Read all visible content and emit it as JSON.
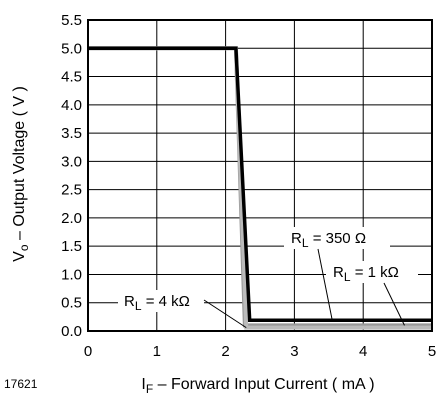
{
  "chart_data": {
    "type": "line",
    "figure_id": "17621",
    "xlabel": {
      "main": "I",
      "sub": "F",
      "rest": " – Forward Input Current ( mA )"
    },
    "ylabel": {
      "main": "V",
      "sub": "o",
      "rest": "  – Output Voltage ( V )"
    },
    "xlim": [
      0,
      5
    ],
    "ylim": [
      0,
      5.5
    ],
    "xticks": [
      "0",
      "1",
      "2",
      "3",
      "4",
      "5"
    ],
    "yticks": [
      "0.0",
      "0.5",
      "1.0",
      "1.5",
      "2.0",
      "2.5",
      "3.0",
      "3.5",
      "4.0",
      "4.5",
      "5.0",
      "5.5"
    ],
    "grid": true,
    "series": [
      {
        "name": "R_L = 1 kΩ",
        "color": "#999999",
        "x": [
          0,
          2.15,
          2.28,
          5
        ],
        "y": [
          5.0,
          5.0,
          0.1,
          0.1
        ]
      },
      {
        "name": "R_L = 4 kΩ",
        "color": "#bbbbbb",
        "x": [
          0,
          2.15,
          2.3,
          5
        ],
        "y": [
          5.0,
          5.0,
          0.06,
          0.06
        ]
      },
      {
        "name": "R_L = 350 Ω",
        "color": "#000000",
        "x": [
          0,
          2.15,
          2.35,
          5
        ],
        "y": [
          5.0,
          5.0,
          0.19,
          0.19
        ]
      }
    ],
    "annotations": [
      {
        "main": "R",
        "sub": "L",
        "rest": " = 350 Ω",
        "pointer_to": {
          "x": 3.55,
          "y": 0.19
        }
      },
      {
        "main": "R",
        "sub": "L",
        "rest": " = 1 kΩ",
        "pointer_to": {
          "x": 4.6,
          "y": 0.1
        }
      },
      {
        "main": "R",
        "sub": "L",
        "rest": " = 4 kΩ",
        "pointer_to": {
          "x": 2.3,
          "y": 0.06
        }
      }
    ]
  }
}
